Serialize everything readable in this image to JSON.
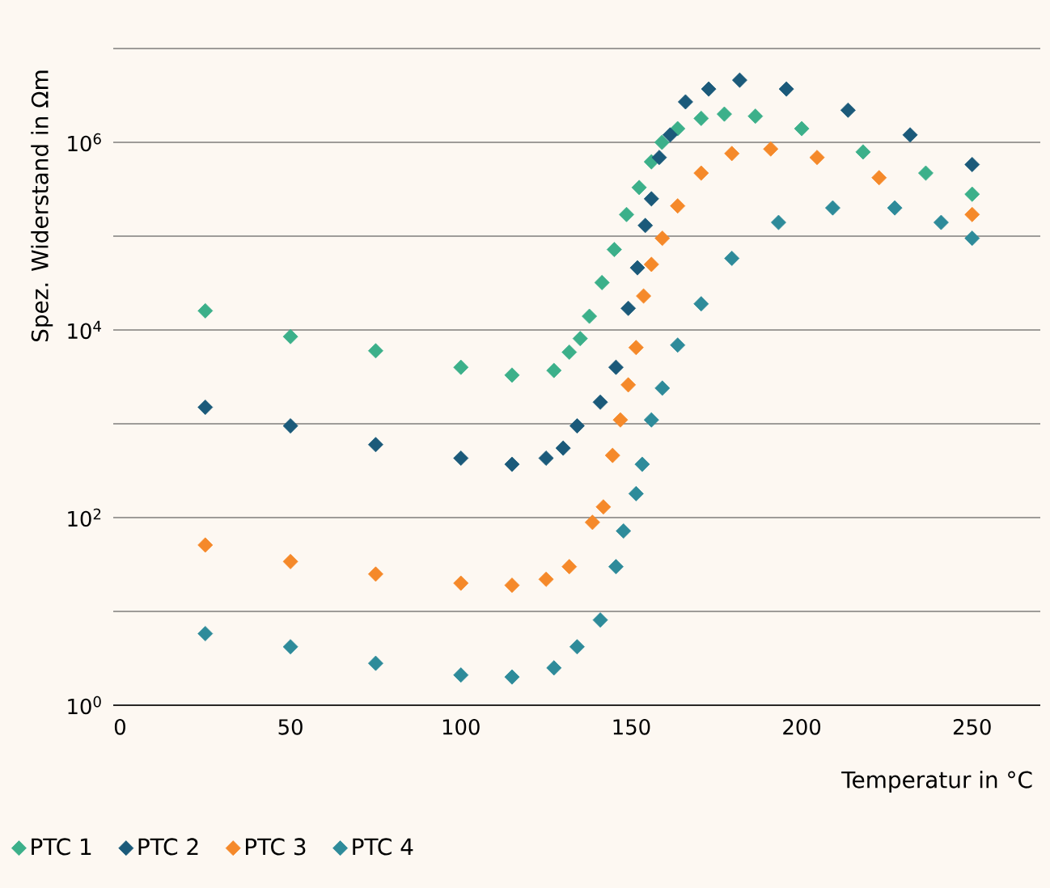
{
  "chart_data": {
    "type": "scatter",
    "xlabel": "Temperatur in °C",
    "ylabel": "Spez. Widerstand in Ωm",
    "log": "y",
    "grid": "y",
    "legend": "bottom",
    "marker": "diamond",
    "xlim": [
      -2,
      270
    ],
    "xticks": [
      0,
      50,
      100,
      150,
      200,
      250
    ],
    "ylim": [
      1,
      10000000
    ],
    "yticks": [
      {
        "value": 1,
        "label": "10$^{0}$"
      },
      {
        "value": 10,
        "label": null
      },
      {
        "value": 100,
        "label": "10$^{2}$"
      },
      {
        "value": 1000,
        "label": null
      },
      {
        "value": 10000,
        "label": "10$^{4}$"
      },
      {
        "value": 100000,
        "label": null
      },
      {
        "value": 1000000,
        "label": "10$^{6}$"
      },
      {
        "value": 10000000,
        "label": null
      }
    ],
    "series": [
      {
        "name": "PTC 1",
        "color": "#3cb08a",
        "x": [
          25,
          50,
          75,
          100,
          115,
          127.3,
          131.8,
          135,
          137.7,
          141.4,
          145,
          148.6,
          152.3,
          155.9,
          159,
          163.6,
          170.5,
          177.3,
          186.4,
          200,
          218,
          236.4,
          250
        ],
        "values": [
          16000.0,
          8500.0,
          6000.0,
          4000.0,
          3300.0,
          3700.0,
          5800.0,
          8100.0,
          14000.0,
          32000.0,
          72000.0,
          170000.0,
          330000.0,
          620000.0,
          1000000.0,
          1400000.0,
          1800000.0,
          2000000.0,
          1900000.0,
          1400000.0,
          790000.0,
          470000.0,
          280000.0
        ]
      },
      {
        "name": "PTC 2",
        "color": "#1b5a7a",
        "x": [
          25,
          50,
          75,
          100,
          115,
          125,
          130,
          134.1,
          140.9,
          145.5,
          149.1,
          151.8,
          154.1,
          155.9,
          158.2,
          161.4,
          165.9,
          172.7,
          181.8,
          195.5,
          213.6,
          231.8,
          250
        ],
        "values": [
          1500.0,
          950.0,
          600.0,
          430.0,
          370.0,
          430.0,
          550.0,
          950.0,
          1700.0,
          4000.0,
          17000.0,
          46000.0,
          130000.0,
          250000.0,
          690000.0,
          1200000.0,
          2700000.0,
          3700000.0,
          4600000.0,
          3700000.0,
          2200000.0,
          1200000.0,
          580000.0
        ]
      },
      {
        "name": "PTC 3",
        "color": "#f5892a",
        "x": [
          25,
          50,
          75,
          100,
          115,
          125,
          131.8,
          138.6,
          141.8,
          144.5,
          146.8,
          149.1,
          151.4,
          153.6,
          155.9,
          159.1,
          163.6,
          170.5,
          179.5,
          190.9,
          204.5,
          222.7,
          250
        ],
        "values": [
          51,
          34,
          25,
          20,
          19,
          22,
          30,
          89,
          130,
          460,
          1100.0,
          2600.0,
          6500.0,
          23000.0,
          50000.0,
          95000.0,
          210000.0,
          470000.0,
          760000.0,
          850000.0,
          690000.0,
          420000.0,
          170000.0
        ]
      },
      {
        "name": "PTC 4",
        "color": "#2e8b9a",
        "x": [
          25,
          50,
          75,
          100,
          115,
          127.3,
          134.1,
          140.9,
          145.5,
          147.7,
          151.4,
          153.2,
          155.9,
          159.1,
          163.6,
          170.5,
          179.5,
          193.2,
          209.1,
          227.3,
          240.9,
          250
        ],
        "values": [
          5.8,
          4.2,
          2.8,
          2.1,
          2.0,
          2.5,
          4.2,
          8.1,
          30,
          72,
          180,
          370,
          1100.0,
          2400.0,
          6900.0,
          19000.0,
          58000.0,
          140000.0,
          200000.0,
          200000.0,
          140000.0,
          95000.0
        ]
      }
    ]
  }
}
